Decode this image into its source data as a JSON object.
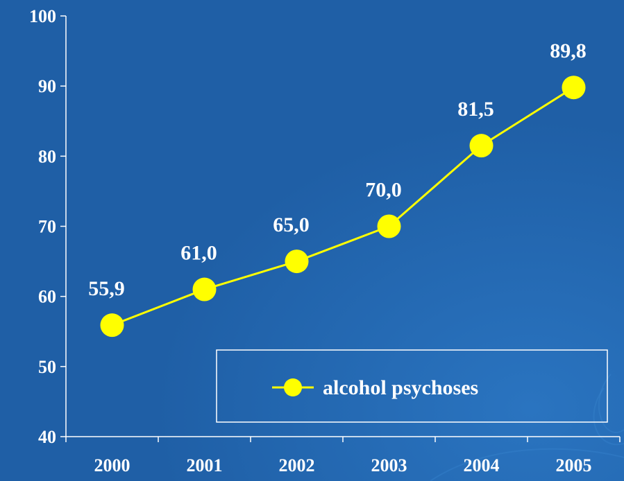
{
  "colors": {
    "background": "#1f5fa6",
    "axis": "#ffffff",
    "series": "#ffff00",
    "text": "#ffffff"
  },
  "chart_data": {
    "type": "line",
    "categories": [
      "2000",
      "2001",
      "2002",
      "2003",
      "2004",
      "2005"
    ],
    "series": [
      {
        "name": "alcohol psychoses",
        "values": [
          55.9,
          61.0,
          65.0,
          70.0,
          81.5,
          89.8
        ],
        "labels": [
          "55,9",
          "61,0",
          "65,0",
          "70,0",
          "81,5",
          "89,8"
        ]
      }
    ],
    "y_ticks": [
      "40",
      "50",
      "60",
      "70",
      "80",
      "90",
      "100"
    ],
    "ylim": [
      40,
      100
    ],
    "grid": false,
    "legend_position": "bottom-right"
  }
}
